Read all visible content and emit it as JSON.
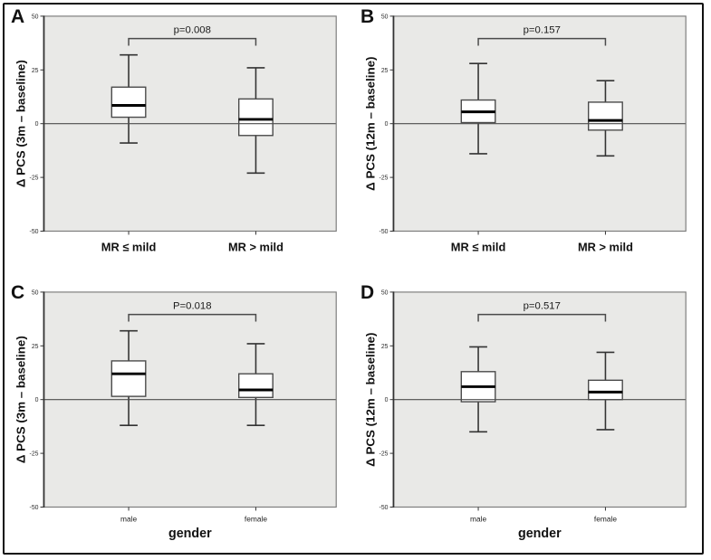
{
  "figure": {
    "border_color": "#101010",
    "background": "#ffffff",
    "plot_background": "#e9e9e7",
    "box_fill": "#ffffff",
    "line_color": "#2b2b2b"
  },
  "panels": [
    {
      "letter": "A"
    },
    {
      "letter": "B"
    },
    {
      "letter": "C"
    },
    {
      "letter": "D"
    }
  ],
  "chart_data": [
    {
      "type": "boxplot",
      "panel": "A",
      "ylabel": "Δ PCS (3m – baseline)",
      "xlabel": "",
      "ylim": [
        -50,
        50
      ],
      "yticks": [
        "50",
        "25",
        "0",
        "-25",
        "-50"
      ],
      "ytick_values": [
        50,
        25,
        0,
        -25,
        -50
      ],
      "reference_line": 0,
      "categories": [
        "MR ≤ mild",
        "MR > mild"
      ],
      "category_label_style": "bold-large",
      "p_label": "p=0.008",
      "series": [
        {
          "name": "MR ≤ mild",
          "whisker_low": -9,
          "q1": 3,
          "median": 8.5,
          "q3": 17,
          "whisker_high": 32
        },
        {
          "name": "MR > mild",
          "whisker_low": -23,
          "q1": -5.5,
          "median": 2,
          "q3": 11.5,
          "whisker_high": 26
        }
      ]
    },
    {
      "type": "boxplot",
      "panel": "B",
      "ylabel": "Δ PCS (12m – baseline)",
      "xlabel": "",
      "ylim": [
        -50,
        50
      ],
      "yticks": [
        "50",
        "25",
        "0",
        "-25",
        "-50"
      ],
      "ytick_values": [
        50,
        25,
        0,
        -25,
        -50
      ],
      "reference_line": 0,
      "categories": [
        "MR ≤ mild",
        "MR > mild"
      ],
      "category_label_style": "bold-large",
      "p_label": "p=0.157",
      "series": [
        {
          "name": "MR ≤ mild",
          "whisker_low": -14,
          "q1": 0.5,
          "median": 5.5,
          "q3": 11,
          "whisker_high": 28
        },
        {
          "name": "MR > mild",
          "whisker_low": -15,
          "q1": -3,
          "median": 1.5,
          "q3": 10,
          "whisker_high": 20
        }
      ]
    },
    {
      "type": "boxplot",
      "panel": "C",
      "ylabel": "Δ PCS (3m – baseline)",
      "xlabel": "gender",
      "ylim": [
        -50,
        50
      ],
      "yticks": [
        "50",
        "25",
        "0",
        "-25",
        "-50"
      ],
      "ytick_values": [
        50,
        25,
        0,
        -25,
        -50
      ],
      "reference_line": 0,
      "categories": [
        "male",
        "female"
      ],
      "category_label_style": "small",
      "p_label": "P=0.018",
      "series": [
        {
          "name": "male",
          "whisker_low": -12,
          "q1": 1.5,
          "median": 12,
          "q3": 18,
          "whisker_high": 32
        },
        {
          "name": "female",
          "whisker_low": -12,
          "q1": 1,
          "median": 4.5,
          "q3": 12,
          "whisker_high": 26
        }
      ]
    },
    {
      "type": "boxplot",
      "panel": "D",
      "ylabel": "Δ PCS (12m – baseline)",
      "xlabel": "gender",
      "ylim": [
        -50,
        50
      ],
      "yticks": [
        "50",
        "25",
        "0",
        "-25",
        "-50"
      ],
      "ytick_values": [
        50,
        25,
        0,
        -25,
        -50
      ],
      "reference_line": 0,
      "categories": [
        "male",
        "female"
      ],
      "category_label_style": "small",
      "p_label": "p=0.517",
      "series": [
        {
          "name": "male",
          "whisker_low": -15,
          "q1": -1,
          "median": 6,
          "q3": 13,
          "whisker_high": 24.5
        },
        {
          "name": "female",
          "whisker_low": -14,
          "q1": 0,
          "median": 3.5,
          "q3": 9,
          "whisker_high": 22
        }
      ]
    }
  ]
}
